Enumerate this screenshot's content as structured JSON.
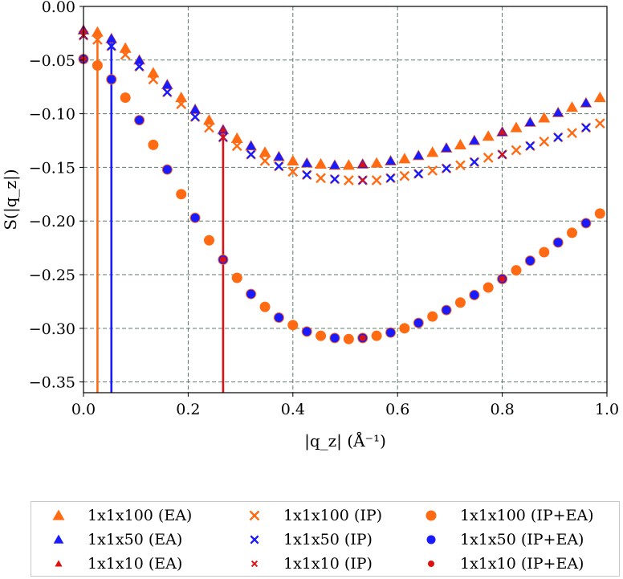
{
  "colors": {
    "orange": "#ff6a13",
    "blue": "#1a1aff",
    "red": "#dd1111"
  },
  "chart_data": {
    "type": "scatter",
    "title": "",
    "xlabel": "|q_z| (Å⁻¹)",
    "ylabel": "S(|q_z|)",
    "xlim": [
      0.0,
      1.0
    ],
    "ylim": [
      -0.36,
      0.0
    ],
    "xticks": [
      "0.0",
      "0.2",
      "0.4",
      "0.6",
      "0.8",
      "1.0"
    ],
    "yticks": [
      "0.00",
      "−0.05",
      "−0.10",
      "−0.15",
      "−0.20",
      "−0.25",
      "−0.30",
      "−0.35"
    ],
    "grid": true,
    "legend_position": "below",
    "vertical_lines": [
      {
        "x": 0.0267,
        "y_top": -0.028,
        "color": "orange"
      },
      {
        "x": 0.0533,
        "y_top": -0.03,
        "color": "blue"
      },
      {
        "x": 0.2667,
        "y_top": -0.117,
        "color": "red"
      }
    ],
    "series": [
      {
        "name": "1x1x100 (EA)",
        "marker": "triangle",
        "color": "orange",
        "size": "large",
        "x": [
          0.0,
          0.0267,
          0.0533,
          0.08,
          0.1067,
          0.1333,
          0.16,
          0.1867,
          0.2133,
          0.24,
          0.2667,
          0.2933,
          0.32,
          0.3467,
          0.3733,
          0.4,
          0.4267,
          0.4533,
          0.48,
          0.5067,
          0.5333,
          0.56,
          0.5867,
          0.6133,
          0.64,
          0.6667,
          0.6933,
          0.72,
          0.7467,
          0.7733,
          0.8,
          0.8267,
          0.8533,
          0.88,
          0.9067,
          0.9333,
          0.96,
          0.9867
        ],
        "y": [
          -0.022,
          -0.024,
          -0.03,
          -0.039,
          -0.05,
          -0.062,
          -0.073,
          -0.085,
          -0.096,
          -0.106,
          -0.115,
          -0.123,
          -0.13,
          -0.136,
          -0.14,
          -0.144,
          -0.146,
          -0.147,
          -0.148,
          -0.148,
          -0.147,
          -0.146,
          -0.144,
          -0.142,
          -0.139,
          -0.136,
          -0.132,
          -0.129,
          -0.125,
          -0.121,
          -0.117,
          -0.113,
          -0.108,
          -0.104,
          -0.099,
          -0.094,
          -0.09,
          -0.085
        ]
      },
      {
        "name": "1x1x100 (IP)",
        "marker": "x",
        "color": "orange",
        "size": "large",
        "x": [
          0.0,
          0.0267,
          0.0533,
          0.08,
          0.1067,
          0.1333,
          0.16,
          0.1867,
          0.2133,
          0.24,
          0.2667,
          0.2933,
          0.32,
          0.3467,
          0.3733,
          0.4,
          0.4267,
          0.4533,
          0.48,
          0.5067,
          0.5333,
          0.56,
          0.5867,
          0.6133,
          0.64,
          0.6667,
          0.6933,
          0.72,
          0.7467,
          0.7733,
          0.8,
          0.8267,
          0.8533,
          0.88,
          0.9067,
          0.9333,
          0.96,
          0.9867
        ],
        "y": [
          -0.027,
          -0.031,
          -0.037,
          -0.045,
          -0.056,
          -0.068,
          -0.08,
          -0.091,
          -0.103,
          -0.113,
          -0.122,
          -0.13,
          -0.138,
          -0.144,
          -0.149,
          -0.154,
          -0.157,
          -0.16,
          -0.161,
          -0.162,
          -0.162,
          -0.162,
          -0.16,
          -0.158,
          -0.156,
          -0.153,
          -0.151,
          -0.148,
          -0.145,
          -0.141,
          -0.138,
          -0.134,
          -0.13,
          -0.126,
          -0.122,
          -0.118,
          -0.113,
          -0.109
        ]
      },
      {
        "name": "1x1x100 (IP+EA)",
        "marker": "circle",
        "color": "orange",
        "size": "large",
        "x": [
          0.0,
          0.0267,
          0.0533,
          0.08,
          0.1067,
          0.1333,
          0.16,
          0.1867,
          0.2133,
          0.24,
          0.2667,
          0.2933,
          0.32,
          0.3467,
          0.3733,
          0.4,
          0.4267,
          0.4533,
          0.48,
          0.5067,
          0.5333,
          0.56,
          0.5867,
          0.6133,
          0.64,
          0.6667,
          0.6933,
          0.72,
          0.7467,
          0.7733,
          0.8,
          0.8267,
          0.8533,
          0.88,
          0.9067,
          0.9333,
          0.96,
          0.9867
        ],
        "y": [
          -0.049,
          -0.055,
          -0.068,
          -0.085,
          -0.106,
          -0.129,
          -0.152,
          -0.175,
          -0.197,
          -0.218,
          -0.236,
          -0.253,
          -0.268,
          -0.28,
          -0.29,
          -0.297,
          -0.303,
          -0.307,
          -0.309,
          -0.31,
          -0.309,
          -0.307,
          -0.304,
          -0.3,
          -0.295,
          -0.289,
          -0.283,
          -0.276,
          -0.269,
          -0.262,
          -0.254,
          -0.246,
          -0.237,
          -0.229,
          -0.22,
          -0.211,
          -0.202,
          -0.193
        ]
      },
      {
        "name": "1x1x50 (EA)",
        "marker": "triangle",
        "color": "blue",
        "size": "medium",
        "x": [
          0.0,
          0.0533,
          0.1067,
          0.16,
          0.2133,
          0.2667,
          0.32,
          0.3733,
          0.4267,
          0.48,
          0.5333,
          0.5867,
          0.64,
          0.6933,
          0.7467,
          0.8,
          0.8533,
          0.9067,
          0.96
        ],
        "y": [
          -0.022,
          -0.03,
          -0.05,
          -0.073,
          -0.096,
          -0.115,
          -0.13,
          -0.14,
          -0.146,
          -0.148,
          -0.147,
          -0.144,
          -0.139,
          -0.132,
          -0.125,
          -0.117,
          -0.108,
          -0.099,
          -0.09
        ]
      },
      {
        "name": "1x1x50 (IP)",
        "marker": "x",
        "color": "blue",
        "size": "medium",
        "x": [
          0.0,
          0.0533,
          0.1067,
          0.16,
          0.2133,
          0.2667,
          0.32,
          0.3733,
          0.4267,
          0.48,
          0.5333,
          0.5867,
          0.64,
          0.6933,
          0.7467,
          0.8,
          0.8533,
          0.9067,
          0.96
        ],
        "y": [
          -0.027,
          -0.037,
          -0.056,
          -0.08,
          -0.103,
          -0.122,
          -0.138,
          -0.149,
          -0.157,
          -0.161,
          -0.162,
          -0.16,
          -0.156,
          -0.151,
          -0.145,
          -0.138,
          -0.13,
          -0.122,
          -0.113
        ]
      },
      {
        "name": "1x1x50 (IP+EA)",
        "marker": "circle",
        "color": "blue",
        "size": "medium",
        "x": [
          0.0,
          0.0533,
          0.1067,
          0.16,
          0.2133,
          0.2667,
          0.32,
          0.3733,
          0.4267,
          0.48,
          0.5333,
          0.5867,
          0.64,
          0.6933,
          0.7467,
          0.8,
          0.8533,
          0.9067,
          0.96
        ],
        "y": [
          -0.049,
          -0.068,
          -0.106,
          -0.152,
          -0.197,
          -0.236,
          -0.268,
          -0.29,
          -0.303,
          -0.309,
          -0.309,
          -0.304,
          -0.295,
          -0.283,
          -0.269,
          -0.254,
          -0.237,
          -0.22,
          -0.202
        ]
      },
      {
        "name": "1x1x10 (EA)",
        "marker": "triangle",
        "color": "red",
        "size": "small",
        "x": [
          0.0,
          0.2667,
          0.5333,
          0.8
        ],
        "y": [
          -0.022,
          -0.115,
          -0.147,
          -0.117
        ]
      },
      {
        "name": "1x1x10 (IP)",
        "marker": "x",
        "color": "red",
        "size": "small",
        "x": [
          0.0,
          0.2667,
          0.5333,
          0.8
        ],
        "y": [
          -0.027,
          -0.122,
          -0.162,
          -0.138
        ]
      },
      {
        "name": "1x1x10 (IP+EA)",
        "marker": "circle",
        "color": "red",
        "size": "small",
        "x": [
          0.0,
          0.2667,
          0.5333,
          0.8
        ],
        "y": [
          -0.049,
          -0.236,
          -0.309,
          -0.254
        ]
      }
    ]
  }
}
